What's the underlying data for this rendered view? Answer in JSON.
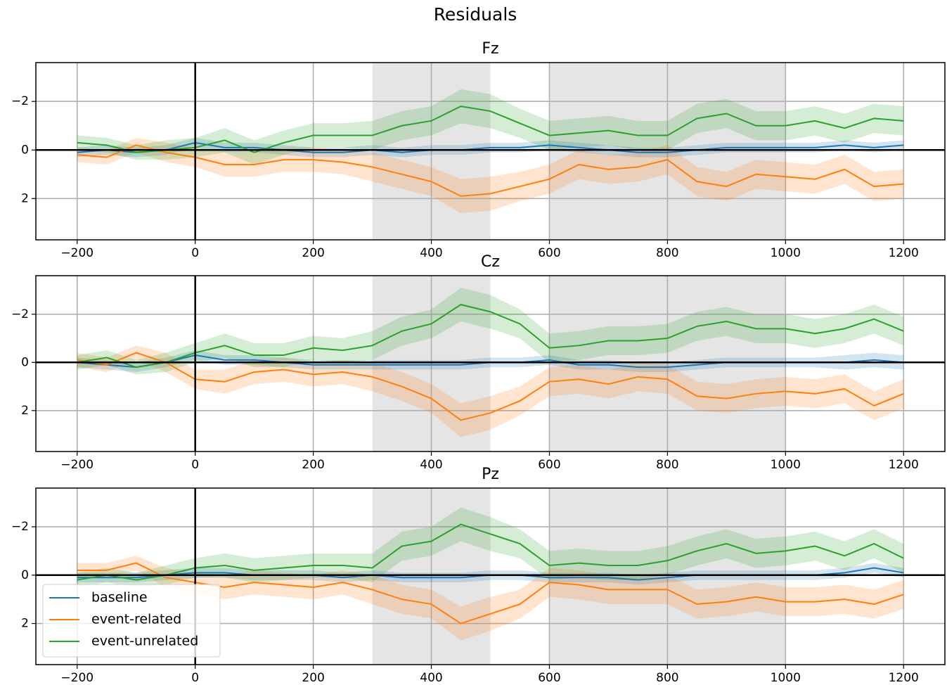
{
  "title": "Residuals",
  "chart_data": [
    {
      "type": "line",
      "title": "Fz",
      "x": [
        -200,
        -150,
        -100,
        -50,
        0,
        50,
        100,
        150,
        200,
        250,
        300,
        350,
        400,
        450,
        500,
        550,
        600,
        650,
        700,
        750,
        800,
        850,
        900,
        950,
        1000,
        1050,
        1100,
        1150,
        1200
      ],
      "series": [
        {
          "name": "baseline",
          "color": "#1f77b4",
          "values": [
            0.1,
            0.0,
            0.1,
            0.0,
            -0.3,
            -0.1,
            -0.1,
            0.0,
            0.1,
            0.1,
            0.0,
            0.1,
            0.0,
            0.0,
            -0.1,
            -0.1,
            -0.2,
            -0.1,
            0.0,
            0.1,
            0.1,
            0.0,
            -0.1,
            -0.1,
            -0.1,
            -0.1,
            -0.2,
            -0.1,
            -0.2
          ],
          "ci": [
            0.2,
            0.2,
            0.2,
            0.2,
            0.2,
            0.2,
            0.2,
            0.2,
            0.2,
            0.2,
            0.2,
            0.2,
            0.2,
            0.2,
            0.2,
            0.2,
            0.2,
            0.2,
            0.2,
            0.2,
            0.2,
            0.2,
            0.2,
            0.2,
            0.2,
            0.2,
            0.2,
            0.2,
            0.2
          ]
        },
        {
          "name": "event-related",
          "color": "#ff7f0e",
          "values": [
            0.2,
            0.3,
            -0.2,
            0.1,
            0.3,
            0.6,
            0.6,
            0.4,
            0.4,
            0.5,
            0.7,
            1.0,
            1.3,
            1.9,
            1.8,
            1.5,
            1.2,
            0.6,
            0.8,
            0.7,
            0.4,
            1.3,
            1.5,
            1.0,
            1.1,
            1.2,
            0.8,
            1.5,
            1.4
          ],
          "ci": [
            0.3,
            0.3,
            0.3,
            0.4,
            0.4,
            0.5,
            0.5,
            0.5,
            0.5,
            0.5,
            0.6,
            0.6,
            0.6,
            0.7,
            0.7,
            0.6,
            0.6,
            0.6,
            0.6,
            0.6,
            0.6,
            0.6,
            0.6,
            0.6,
            0.6,
            0.6,
            0.6,
            0.6,
            0.6
          ]
        },
        {
          "name": "event-unrelated",
          "color": "#2ca02c",
          "values": [
            -0.3,
            -0.2,
            0.1,
            0.0,
            -0.1,
            -0.4,
            0.1,
            -0.3,
            -0.6,
            -0.6,
            -0.6,
            -1.0,
            -1.2,
            -1.8,
            -1.6,
            -1.1,
            -0.6,
            -0.7,
            -0.8,
            -0.6,
            -0.6,
            -1.3,
            -1.5,
            -1.0,
            -1.0,
            -1.2,
            -0.9,
            -1.3,
            -1.2
          ],
          "ci": [
            0.3,
            0.3,
            0.3,
            0.4,
            0.4,
            0.5,
            0.5,
            0.5,
            0.5,
            0.5,
            0.6,
            0.6,
            0.6,
            0.7,
            0.7,
            0.6,
            0.6,
            0.6,
            0.6,
            0.6,
            0.6,
            0.6,
            0.6,
            0.6,
            0.6,
            0.6,
            0.6,
            0.6,
            0.6
          ]
        }
      ],
      "xlim": [
        -270,
        1270
      ],
      "ylim": [
        -3.6,
        3.7
      ],
      "invert_y": true,
      "xticks": [
        {
          "value": -200,
          "label": "−200"
        },
        0,
        200,
        400,
        600,
        800,
        1000,
        1200
      ],
      "yticks": [
        {
          "value": -2,
          "label": "−2"
        },
        0,
        2
      ],
      "grid": true,
      "spans": [
        [
          300,
          500
        ],
        [
          600,
          1000
        ]
      ],
      "hline": 0,
      "vline": 0
    },
    {
      "type": "line",
      "title": "Cz",
      "x": [
        -200,
        -150,
        -100,
        -50,
        0,
        50,
        100,
        150,
        200,
        250,
        300,
        350,
        400,
        450,
        500,
        550,
        600,
        650,
        700,
        750,
        800,
        850,
        900,
        950,
        1000,
        1050,
        1100,
        1150,
        1200
      ],
      "series": [
        {
          "name": "baseline",
          "color": "#1f77b4",
          "values": [
            0.0,
            0.1,
            0.2,
            0.0,
            -0.3,
            -0.1,
            -0.1,
            0.0,
            0.1,
            0.1,
            0.1,
            0.1,
            0.1,
            0.1,
            0.0,
            0.0,
            -0.1,
            0.1,
            0.1,
            0.2,
            0.2,
            0.1,
            0.0,
            0.0,
            0.0,
            0.0,
            0.0,
            -0.1,
            0.0
          ],
          "ci": [
            0.2,
            0.2,
            0.2,
            0.2,
            0.2,
            0.2,
            0.2,
            0.2,
            0.2,
            0.2,
            0.2,
            0.2,
            0.2,
            0.2,
            0.2,
            0.2,
            0.2,
            0.2,
            0.2,
            0.2,
            0.2,
            0.2,
            0.2,
            0.2,
            0.2,
            0.2,
            0.3,
            0.3,
            0.3
          ]
        },
        {
          "name": "event-related",
          "color": "#ff7f0e",
          "values": [
            -0.1,
            0.1,
            -0.4,
            0.0,
            0.7,
            0.8,
            0.4,
            0.3,
            0.5,
            0.4,
            0.6,
            1.0,
            1.5,
            2.4,
            2.1,
            1.6,
            0.8,
            0.7,
            0.9,
            0.6,
            0.7,
            1.4,
            1.5,
            1.3,
            1.2,
            1.3,
            1.1,
            1.8,
            1.3
          ],
          "ci": [
            0.3,
            0.3,
            0.3,
            0.4,
            0.4,
            0.5,
            0.5,
            0.5,
            0.5,
            0.5,
            0.6,
            0.6,
            0.6,
            0.7,
            0.7,
            0.6,
            0.6,
            0.6,
            0.6,
            0.6,
            0.6,
            0.6,
            0.6,
            0.6,
            0.6,
            0.6,
            0.6,
            0.6,
            0.6
          ]
        },
        {
          "name": "event-unrelated",
          "color": "#2ca02c",
          "values": [
            0.0,
            -0.2,
            0.2,
            0.0,
            -0.4,
            -0.7,
            -0.3,
            -0.3,
            -0.6,
            -0.5,
            -0.7,
            -1.3,
            -1.6,
            -2.4,
            -2.1,
            -1.6,
            -0.6,
            -0.7,
            -0.9,
            -0.9,
            -1.0,
            -1.5,
            -1.7,
            -1.4,
            -1.4,
            -1.2,
            -1.4,
            -1.8,
            -1.3
          ],
          "ci": [
            0.3,
            0.3,
            0.3,
            0.4,
            0.4,
            0.5,
            0.5,
            0.5,
            0.5,
            0.5,
            0.6,
            0.6,
            0.6,
            0.7,
            0.7,
            0.6,
            0.6,
            0.6,
            0.6,
            0.6,
            0.6,
            0.6,
            0.6,
            0.6,
            0.6,
            0.6,
            0.6,
            0.6,
            0.6
          ]
        }
      ],
      "xlim": [
        -270,
        1270
      ],
      "ylim": [
        -3.6,
        3.7
      ],
      "invert_y": true,
      "xticks": [
        {
          "value": -200,
          "label": "−200"
        },
        0,
        200,
        400,
        600,
        800,
        1000,
        1200
      ],
      "yticks": [
        {
          "value": -2,
          "label": "−2"
        },
        0,
        2
      ],
      "grid": true,
      "spans": [
        [
          300,
          500
        ],
        [
          600,
          1000
        ]
      ],
      "hline": 0,
      "vline": 0
    },
    {
      "type": "line",
      "title": "Pz",
      "x": [
        -200,
        -150,
        -100,
        -50,
        0,
        50,
        100,
        150,
        200,
        250,
        300,
        350,
        400,
        450,
        500,
        550,
        600,
        650,
        700,
        750,
        800,
        850,
        900,
        950,
        1000,
        1050,
        1100,
        1150,
        1200
      ],
      "series": [
        {
          "name": "baseline",
          "color": "#1f77b4",
          "values": [
            0.1,
            0.1,
            0.1,
            0.0,
            -0.1,
            -0.1,
            0.0,
            0.0,
            0.0,
            0.1,
            0.0,
            0.1,
            0.1,
            0.1,
            0.0,
            0.0,
            0.1,
            0.1,
            0.1,
            0.2,
            0.1,
            0.0,
            0.0,
            0.0,
            0.0,
            0.0,
            -0.1,
            -0.3,
            -0.1
          ],
          "ci": [
            0.2,
            0.2,
            0.2,
            0.2,
            0.2,
            0.2,
            0.2,
            0.2,
            0.2,
            0.2,
            0.2,
            0.2,
            0.2,
            0.2,
            0.2,
            0.2,
            0.2,
            0.2,
            0.2,
            0.2,
            0.2,
            0.2,
            0.2,
            0.2,
            0.2,
            0.2,
            0.2,
            0.2,
            0.2
          ]
        },
        {
          "name": "event-related",
          "color": "#ff7f0e",
          "values": [
            -0.2,
            -0.2,
            -0.5,
            0.1,
            0.3,
            0.5,
            0.3,
            0.4,
            0.5,
            0.3,
            0.6,
            1.0,
            1.2,
            2.0,
            1.6,
            1.2,
            0.3,
            0.4,
            0.6,
            0.6,
            0.6,
            1.2,
            1.1,
            0.9,
            1.1,
            1.1,
            1.0,
            1.2,
            0.8
          ],
          "ci": [
            0.3,
            0.3,
            0.3,
            0.4,
            0.4,
            0.5,
            0.5,
            0.5,
            0.5,
            0.5,
            0.6,
            0.6,
            0.6,
            0.7,
            0.7,
            0.6,
            0.6,
            0.6,
            0.6,
            0.6,
            0.6,
            0.6,
            0.6,
            0.6,
            0.6,
            0.6,
            0.6,
            0.6,
            0.6
          ]
        },
        {
          "name": "event-unrelated",
          "color": "#2ca02c",
          "values": [
            0.2,
            0.0,
            0.2,
            0.0,
            -0.3,
            -0.4,
            -0.2,
            -0.3,
            -0.4,
            -0.4,
            -0.3,
            -1.2,
            -1.4,
            -2.1,
            -1.7,
            -1.3,
            -0.4,
            -0.5,
            -0.4,
            -0.4,
            -0.6,
            -1.0,
            -1.3,
            -0.9,
            -1.0,
            -1.2,
            -0.8,
            -1.3,
            -0.7
          ],
          "ci": [
            0.3,
            0.3,
            0.3,
            0.4,
            0.4,
            0.5,
            0.5,
            0.5,
            0.5,
            0.5,
            0.6,
            0.6,
            0.6,
            0.7,
            0.7,
            0.6,
            0.6,
            0.6,
            0.6,
            0.6,
            0.6,
            0.6,
            0.6,
            0.6,
            0.6,
            0.6,
            0.6,
            0.6,
            0.6
          ]
        }
      ],
      "xlim": [
        -270,
        1270
      ],
      "ylim": [
        -3.6,
        3.7
      ],
      "invert_y": true,
      "xticks": [
        {
          "value": -200,
          "label": "−200"
        },
        0,
        200,
        400,
        600,
        800,
        1000,
        1200
      ],
      "yticks": [
        {
          "value": -2,
          "label": "−2"
        },
        0,
        2
      ],
      "grid": true,
      "spans": [
        [
          300,
          500
        ],
        [
          600,
          1000
        ]
      ],
      "hline": 0,
      "vline": 0,
      "legend": "lower left"
    }
  ]
}
